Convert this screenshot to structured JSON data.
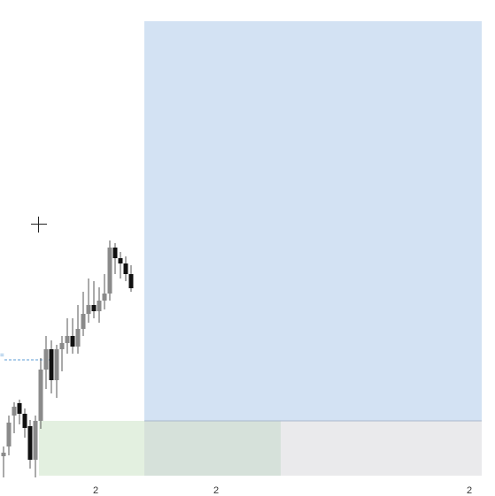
{
  "colors": {
    "projection_zone": "#d3e2f3",
    "target_zone": "#e3f0e0",
    "target_overlap_zone": "#d6e1da",
    "stop_zone": "#eaeaec",
    "zone_divider": "#a9b8cc",
    "candle_wick": "#555555",
    "candle_up_body": "#8a8a8a",
    "candle_down_body": "#111111",
    "price_line": "#5b9bd5"
  },
  "icons": {
    "cursor": "crosshair-icon"
  },
  "axis": {
    "ticks": [
      "2",
      "2",
      "2"
    ]
  },
  "price_marker_text": "="
}
